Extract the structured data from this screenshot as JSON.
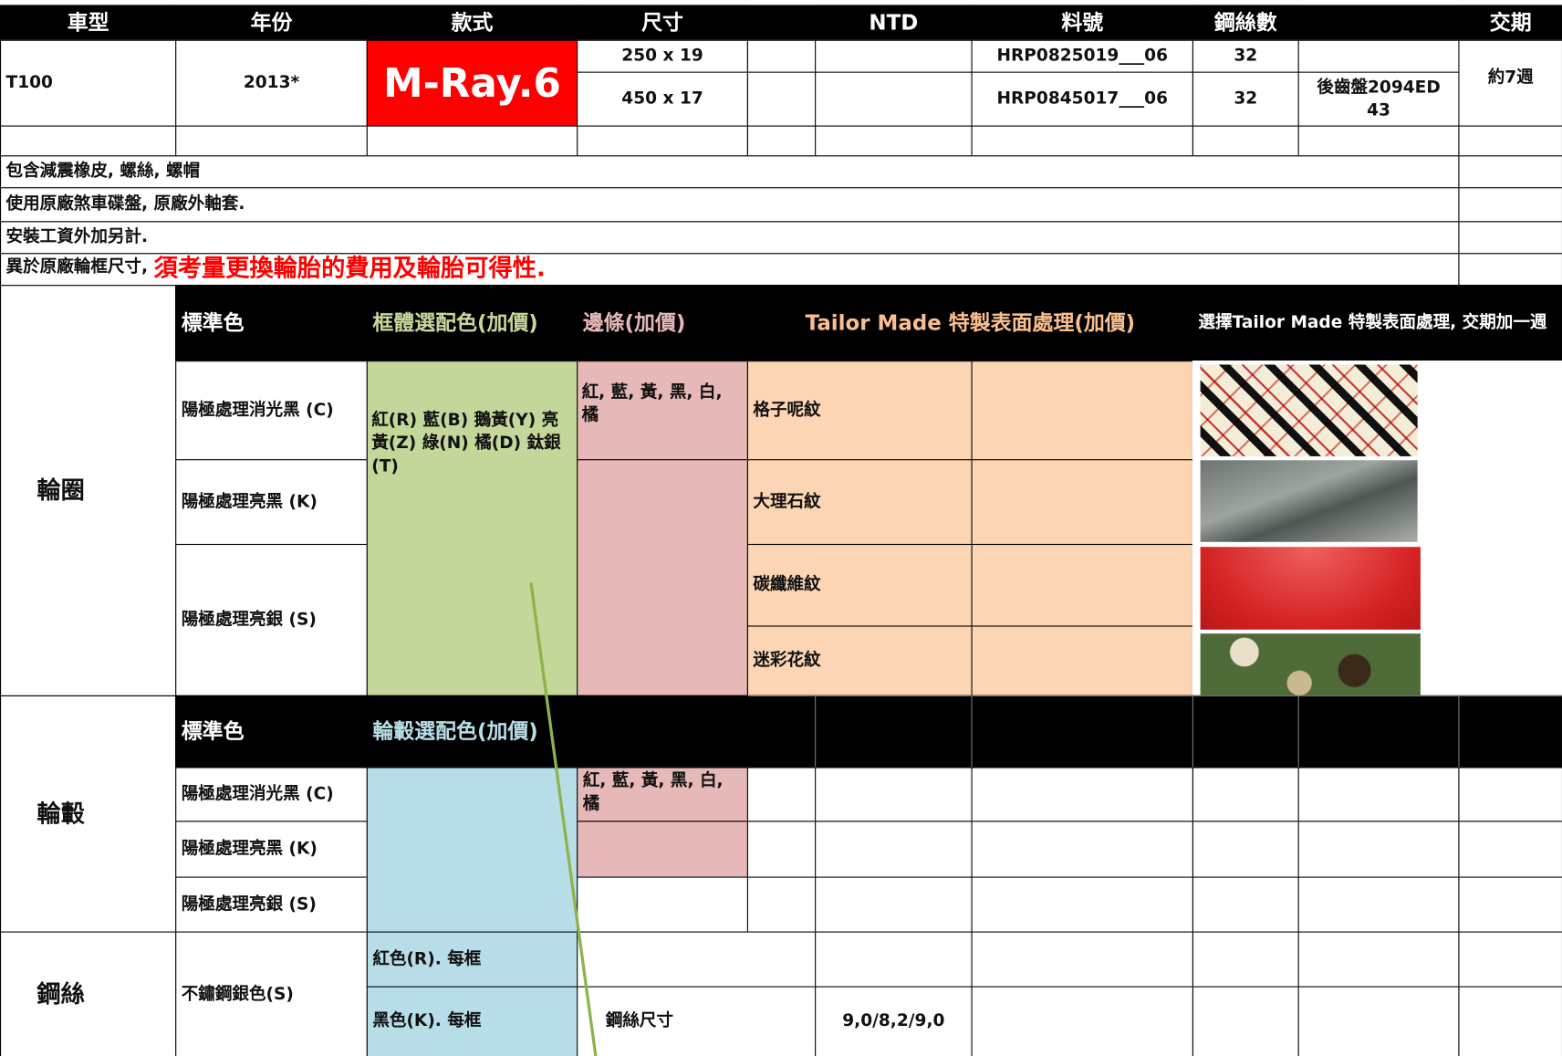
{
  "header": {
    "columns": [
      "車型",
      "年份",
      "款式",
      "尺寸",
      "NTD",
      "料號",
      "鋼絲數",
      "交期"
    ]
  },
  "model": {
    "car": "T100",
    "year": "2013*",
    "style": "M-Ray.6",
    "lead_time": "約7週"
  },
  "sizes": [
    {
      "size": "250 x 19",
      "part_no": "HRP0825019___06",
      "spokes": "32"
    },
    {
      "size": "450 x 17",
      "part_no": "HRP0845017___06",
      "spokes": "32",
      "note": "後齒盤2094ED 43"
    }
  ],
  "notes": [
    "包含減震橡皮, 螺絲, 螺帽",
    "使用原廠煞車碟盤, 原廠外軸套.",
    "安裝工資外加另計."
  ],
  "warning": {
    "text": "異於原廠輪框尺寸,",
    "highlight": "須考量更換輪胎的費用及輪胎可得性."
  },
  "rim": {
    "label": "輪圈",
    "headers": [
      "標準色",
      "框體選配色(加價)",
      "邊條(加價)",
      "Tailor Made 特製表面處理(加價)",
      "選擇Tailor Made 特製表面處理, 交期加一週"
    ],
    "standard": [
      "陽極處理消光黑 (C)",
      "陽極處理亮黑 (K)",
      "陽極處理亮銀 (S)"
    ],
    "frame_colors": "紅(R) 藍(B) 鵝黃(Y) 亮黃(Z) 綠(N) 橘(D) 鈦銀(T)",
    "edge_colors": "紅, 藍, 黃, 黑, 白, 橘",
    "finishes": [
      "格子呢紋",
      "大理石紋",
      "碳纖維紋",
      "迷彩花紋"
    ]
  },
  "hub": {
    "label": "輪轂",
    "headers": [
      "標準色",
      "輪轂選配色(加價)"
    ],
    "standard": [
      "陽極處理消光黑 (C)",
      "陽極處理亮黑 (K)",
      "陽極處理亮銀 (S)"
    ],
    "edge_colors": "紅, 藍, 黃, 黑, 白, 橘"
  },
  "spoke": {
    "label": "鋼絲",
    "standard": "不鏽鋼銀色(S)",
    "colors": [
      "紅色(R). 每框",
      "黑色(K). 每框"
    ],
    "size_label": "鋼絲尺寸",
    "size_value": "9,0/8,2/9,0"
  }
}
